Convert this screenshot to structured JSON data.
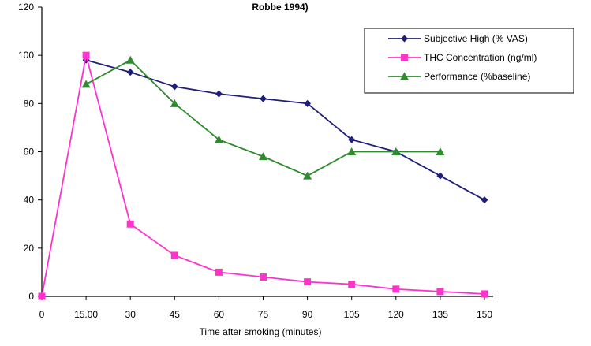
{
  "chart_data": {
    "type": "line",
    "title": "Robbe 1994)",
    "xlabel": "Time after smoking (minutes)",
    "ylabel": "",
    "x_categories": [
      "0",
      "15.00",
      "30",
      "45",
      "60",
      "75",
      "90",
      "105",
      "120",
      "135",
      "150"
    ],
    "ylim": [
      0,
      120
    ],
    "yticks": [
      0,
      20,
      40,
      60,
      80,
      100,
      120
    ],
    "grid": false,
    "legend_position": "top-right",
    "series": [
      {
        "name": "Subjective High (% VAS)",
        "color": "#1f1f7a",
        "marker": "diamond",
        "values": [
          null,
          98,
          93,
          87,
          84,
          82,
          80,
          65,
          60,
          50,
          40
        ]
      },
      {
        "name": "THC Concentration (ng/ml)",
        "color": "#ff33cc",
        "marker": "square",
        "values": [
          0,
          100,
          30,
          17,
          10,
          8,
          6,
          5,
          3,
          2,
          1
        ]
      },
      {
        "name": "Performance (%baseline)",
        "color": "#2e8b2e",
        "marker": "triangle",
        "values": [
          null,
          88,
          98,
          80,
          65,
          58,
          50,
          60,
          60,
          60,
          null
        ]
      }
    ]
  }
}
